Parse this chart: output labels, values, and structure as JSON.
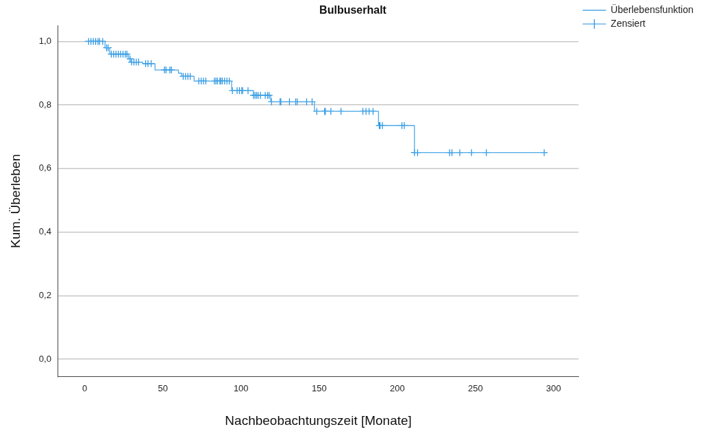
{
  "chart_data": {
    "type": "step",
    "title": "Bulbuserhalt",
    "xlabel": "Nachbeobachtungszeit [Monate]",
    "ylabel": "Kum. Überleben",
    "xlim": [
      -17,
      316
    ],
    "xticks": [
      0,
      50,
      100,
      150,
      200,
      250,
      300
    ],
    "ylim": [
      -0.055,
      1.05
    ],
    "yticks": [
      {
        "value": 0,
        "label": "0,0"
      },
      {
        "value": 0.2,
        "label": "0,2"
      },
      {
        "value": 0.4,
        "label": "0,4"
      },
      {
        "value": 0.6,
        "label": "0,6"
      },
      {
        "value": 0.8,
        "label": "0,8"
      },
      {
        "value": 1,
        "label": "1,0"
      }
    ],
    "grid": "y",
    "legend": "top right",
    "series": [
      {
        "name": "Überlebensfunktion",
        "color": "#4aa8e8",
        "x": [
          0,
          13,
          16,
          28,
          30,
          37,
          45,
          60,
          62,
          70,
          94,
          108,
          119,
          147,
          188,
          211,
          295
        ],
        "values": [
          1,
          0.98,
          0.96,
          0.945,
          0.935,
          0.93,
          0.91,
          0.9,
          0.89,
          0.875,
          0.845,
          0.83,
          0.81,
          0.78,
          0.735,
          0.65,
          0.65
        ]
      },
      {
        "name": "Zensiert",
        "type": "scatter",
        "marker": "cross",
        "color": "#1f8fe0",
        "x": [
          2.5,
          4,
          5.5,
          7,
          8.5,
          9.5,
          11.5,
          14,
          15,
          17,
          18.5,
          20,
          21.5,
          23,
          24.5,
          26,
          27,
          29,
          30,
          31.5,
          33,
          34.5,
          39,
          40.5,
          42.5,
          51,
          52,
          54.5,
          55.5,
          63,
          64.5,
          66,
          67.5,
          73,
          74.5,
          76,
          77.5,
          83,
          84,
          85,
          86.5,
          87,
          88,
          89.5,
          91,
          92.5,
          94.5,
          97.5,
          99,
          100.5,
          101,
          104.5,
          108,
          109,
          110,
          111,
          112.5,
          115.5,
          117,
          118,
          119.5,
          125,
          125.5,
          131,
          135,
          136,
          142,
          145.5,
          148.5,
          153.5,
          154,
          157.5,
          164,
          178,
          180,
          182,
          184.5,
          188.5,
          189,
          190.5,
          203,
          204.5,
          211,
          213,
          233.5,
          235,
          240,
          247.5,
          257,
          294
        ],
        "values": [
          1,
          1,
          1,
          1,
          1,
          1,
          1,
          0.98,
          0.98,
          0.96,
          0.96,
          0.96,
          0.96,
          0.96,
          0.96,
          0.96,
          0.96,
          0.945,
          0.935,
          0.935,
          0.935,
          0.935,
          0.93,
          0.93,
          0.93,
          0.91,
          0.91,
          0.91,
          0.91,
          0.89,
          0.89,
          0.89,
          0.89,
          0.875,
          0.875,
          0.875,
          0.875,
          0.875,
          0.875,
          0.875,
          0.875,
          0.875,
          0.875,
          0.875,
          0.875,
          0.875,
          0.845,
          0.845,
          0.845,
          0.845,
          0.845,
          0.845,
          0.83,
          0.83,
          0.83,
          0.83,
          0.83,
          0.83,
          0.83,
          0.83,
          0.81,
          0.81,
          0.81,
          0.81,
          0.81,
          0.81,
          0.81,
          0.81,
          0.78,
          0.78,
          0.78,
          0.78,
          0.78,
          0.78,
          0.78,
          0.78,
          0.78,
          0.735,
          0.735,
          0.735,
          0.735,
          0.735,
          0.65,
          0.65,
          0.65,
          0.65,
          0.65,
          0.65,
          0.65,
          0.65
        ]
      }
    ]
  }
}
